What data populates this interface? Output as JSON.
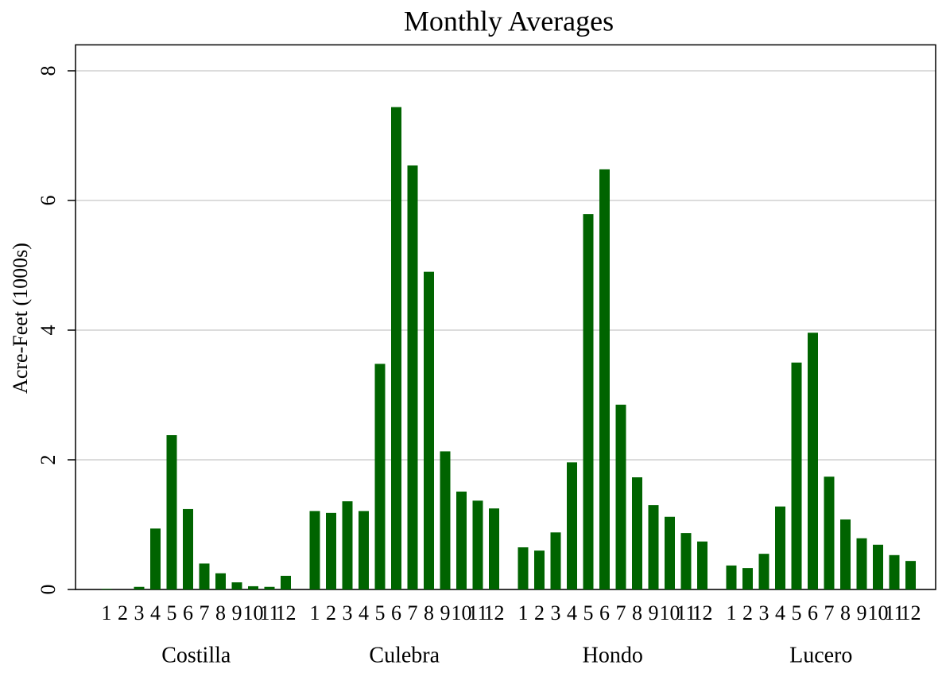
{
  "chart_data": {
    "type": "bar",
    "title": "Monthly Averages",
    "y_label": "Acre-Feet (1000s)",
    "categories": [
      "1",
      "2",
      "3",
      "4",
      "5",
      "6",
      "7",
      "8",
      "9",
      "10",
      "11",
      "12"
    ],
    "groups": [
      {
        "name": "Costilla",
        "values": [
          0.01,
          0,
          0.04,
          0.94,
          2.38,
          1.24,
          0.4,
          0.25,
          0.11,
          0.05,
          0.04,
          0.21
        ]
      },
      {
        "name": "Culebra",
        "values": [
          1.21,
          1.18,
          1.36,
          1.21,
          3.48,
          7.44,
          6.54,
          4.9,
          2.13,
          1.51,
          1.37,
          1.25
        ]
      },
      {
        "name": "Hondo",
        "values": [
          0.65,
          0.6,
          0.88,
          1.96,
          5.79,
          6.48,
          2.85,
          1.73,
          1.3,
          1.12,
          0.87,
          0.74
        ]
      },
      {
        "name": "Lucero",
        "values": [
          0.37,
          0.33,
          0.55,
          1.28,
          3.5,
          3.96,
          1.74,
          1.08,
          0.79,
          0.69,
          0.53,
          0.44
        ]
      }
    ],
    "color": "#006400",
    "ylim": [
      0,
      8.4
    ],
    "yticks": [
      0,
      2,
      4,
      6,
      8
    ],
    "grid": true
  }
}
